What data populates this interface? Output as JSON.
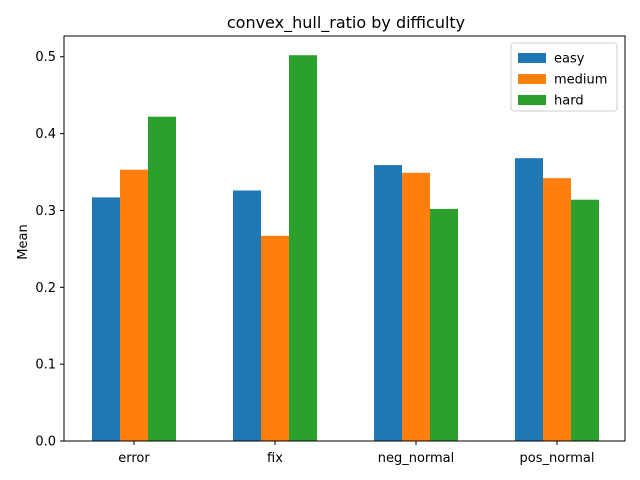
{
  "chart_data": {
    "type": "bar",
    "title": "convex_hull_ratio by difficulty",
    "xlabel": "",
    "ylabel": "Mean",
    "categories": [
      "error",
      "fix",
      "neg_normal",
      "pos_normal"
    ],
    "series": [
      {
        "name": "easy",
        "color": "#1f77b4",
        "values": [
          0.317,
          0.326,
          0.359,
          0.368
        ]
      },
      {
        "name": "medium",
        "color": "#ff7f0e",
        "values": [
          0.353,
          0.267,
          0.349,
          0.342
        ]
      },
      {
        "name": "hard",
        "color": "#2ca02c",
        "values": [
          0.422,
          0.502,
          0.302,
          0.314
        ]
      }
    ],
    "ylim": [
      0,
      0.527
    ],
    "yticks": [
      "0.0",
      "0.1",
      "0.2",
      "0.3",
      "0.4",
      "0.5"
    ],
    "legend": "top-right",
    "grid": false
  }
}
